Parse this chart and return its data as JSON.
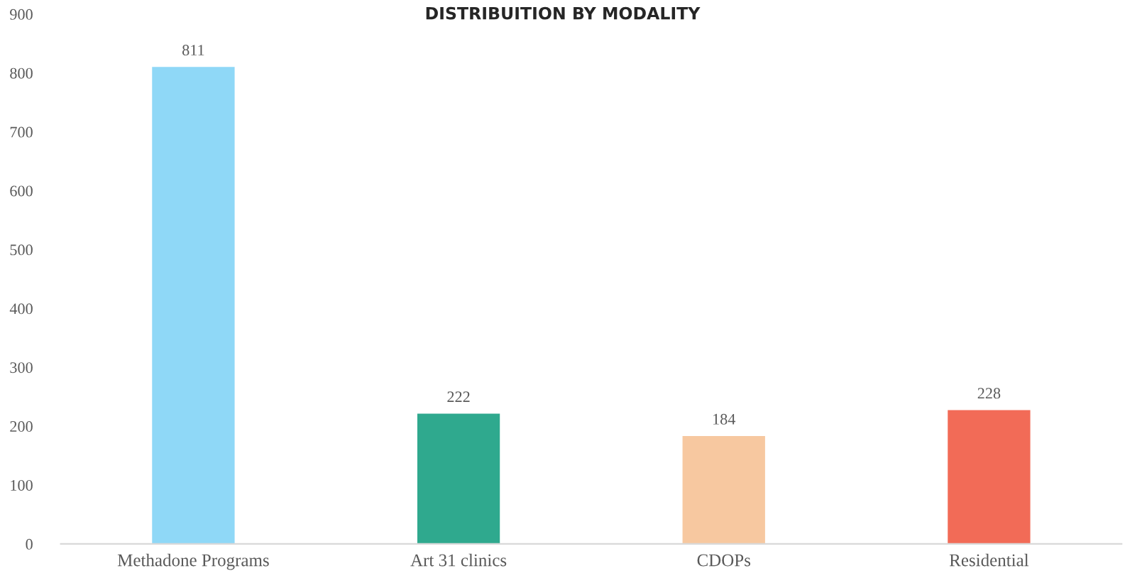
{
  "chart_data": {
    "type": "bar",
    "title": "DISTRIBUITION BY MODALITY",
    "categories": [
      "Methadone Programs",
      "Art 31 clinics",
      "CDOPs",
      "Residential"
    ],
    "values": [
      811,
      222,
      184,
      228
    ],
    "colors": [
      "#8fd8f7",
      "#2fa98e",
      "#f7c8a0",
      "#f26b57"
    ],
    "ylim": [
      0,
      900
    ],
    "yticks": [
      0,
      100,
      200,
      300,
      400,
      500,
      600,
      700,
      800,
      900
    ],
    "data_labels": true,
    "grid": false,
    "legend": false
  }
}
